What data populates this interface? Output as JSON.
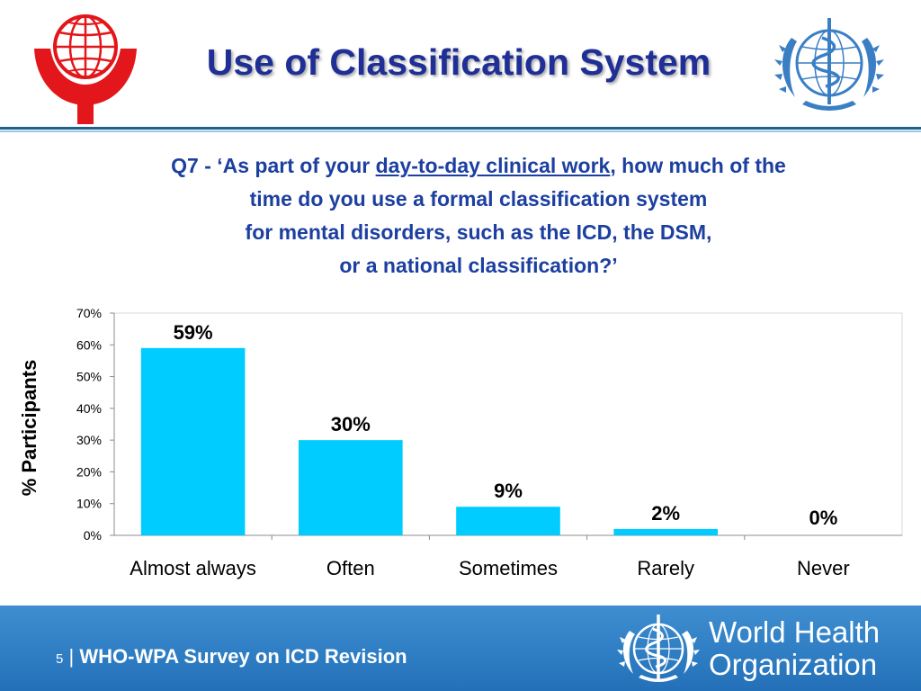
{
  "header": {
    "title": "Use of Classification System",
    "left_logo": "wpa-globe-logo",
    "right_logo": "who-emblem"
  },
  "question": {
    "prefix": "Q7 - ‘As part of your ",
    "underlined": "day-to-day clinical work",
    "line1_suffix": ", how much of the",
    "line2": "time do you use a formal classification system",
    "line3": "for mental disorders, such as the ICD, the DSM,",
    "line4": "or a national classification?’"
  },
  "chart_data": {
    "type": "bar",
    "categories": [
      "Almost always",
      "Often",
      "Sometimes",
      "Rarely",
      "Never"
    ],
    "values": [
      59,
      30,
      9,
      2,
      0
    ],
    "data_labels": [
      "59%",
      "30%",
      "9%",
      "2%",
      "0%"
    ],
    "ylabel": "%  Participants",
    "xlabel": "",
    "ylim": [
      0,
      70
    ],
    "yticks": [
      0,
      10,
      20,
      30,
      40,
      50,
      60,
      70
    ],
    "ytick_labels": [
      "0%",
      "10%",
      "20%",
      "30%",
      "40%",
      "50%",
      "60%",
      "70%"
    ],
    "grid": false,
    "legend": "none",
    "bar_color": "#00ccff"
  },
  "footer": {
    "page_number": "5",
    "separator": "|",
    "label": "WHO-WPA Survey on ICD Revision",
    "org_line1": "World Health",
    "org_line2": "Organization",
    "background_color": "#2f7ec4"
  },
  "colors": {
    "title": "#1f2f96",
    "question": "#1c3fa0",
    "wpa_red": "#e2161b",
    "who_blue": "#3a7fc4"
  }
}
